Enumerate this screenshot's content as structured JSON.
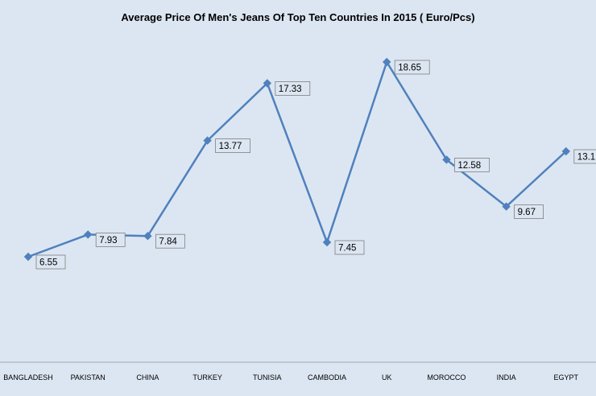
{
  "chart_data": {
    "type": "line",
    "title": "Average Price Of Men's Jeans Of Top Ten Countries In 2015 ( Euro/Pcs)",
    "xlabel": "",
    "ylabel": "",
    "categories": [
      "BANGLADESH",
      "PAKISTAN",
      "CHINA",
      "TURKEY",
      "TUNISIA",
      "CAMBODIA",
      "UK",
      "MOROCCO",
      "INDIA",
      "EGYPT"
    ],
    "series": [
      {
        "values": [
          6.55,
          7.93,
          7.84,
          13.77,
          17.33,
          7.45,
          18.65,
          12.58,
          9.67,
          13.1
        ],
        "data_labels": [
          "6.55",
          "7.93",
          "7.84",
          "13.77",
          "17.33",
          "7.45",
          "18.65",
          "12.58",
          "9.67",
          "13.1"
        ]
      }
    ],
    "ylim": [
      0,
      22
    ],
    "grid": false,
    "legend": "none",
    "colors": {
      "line": "#4f81bd",
      "background": "#dce6f2",
      "axis": "#a6a6a6"
    }
  }
}
